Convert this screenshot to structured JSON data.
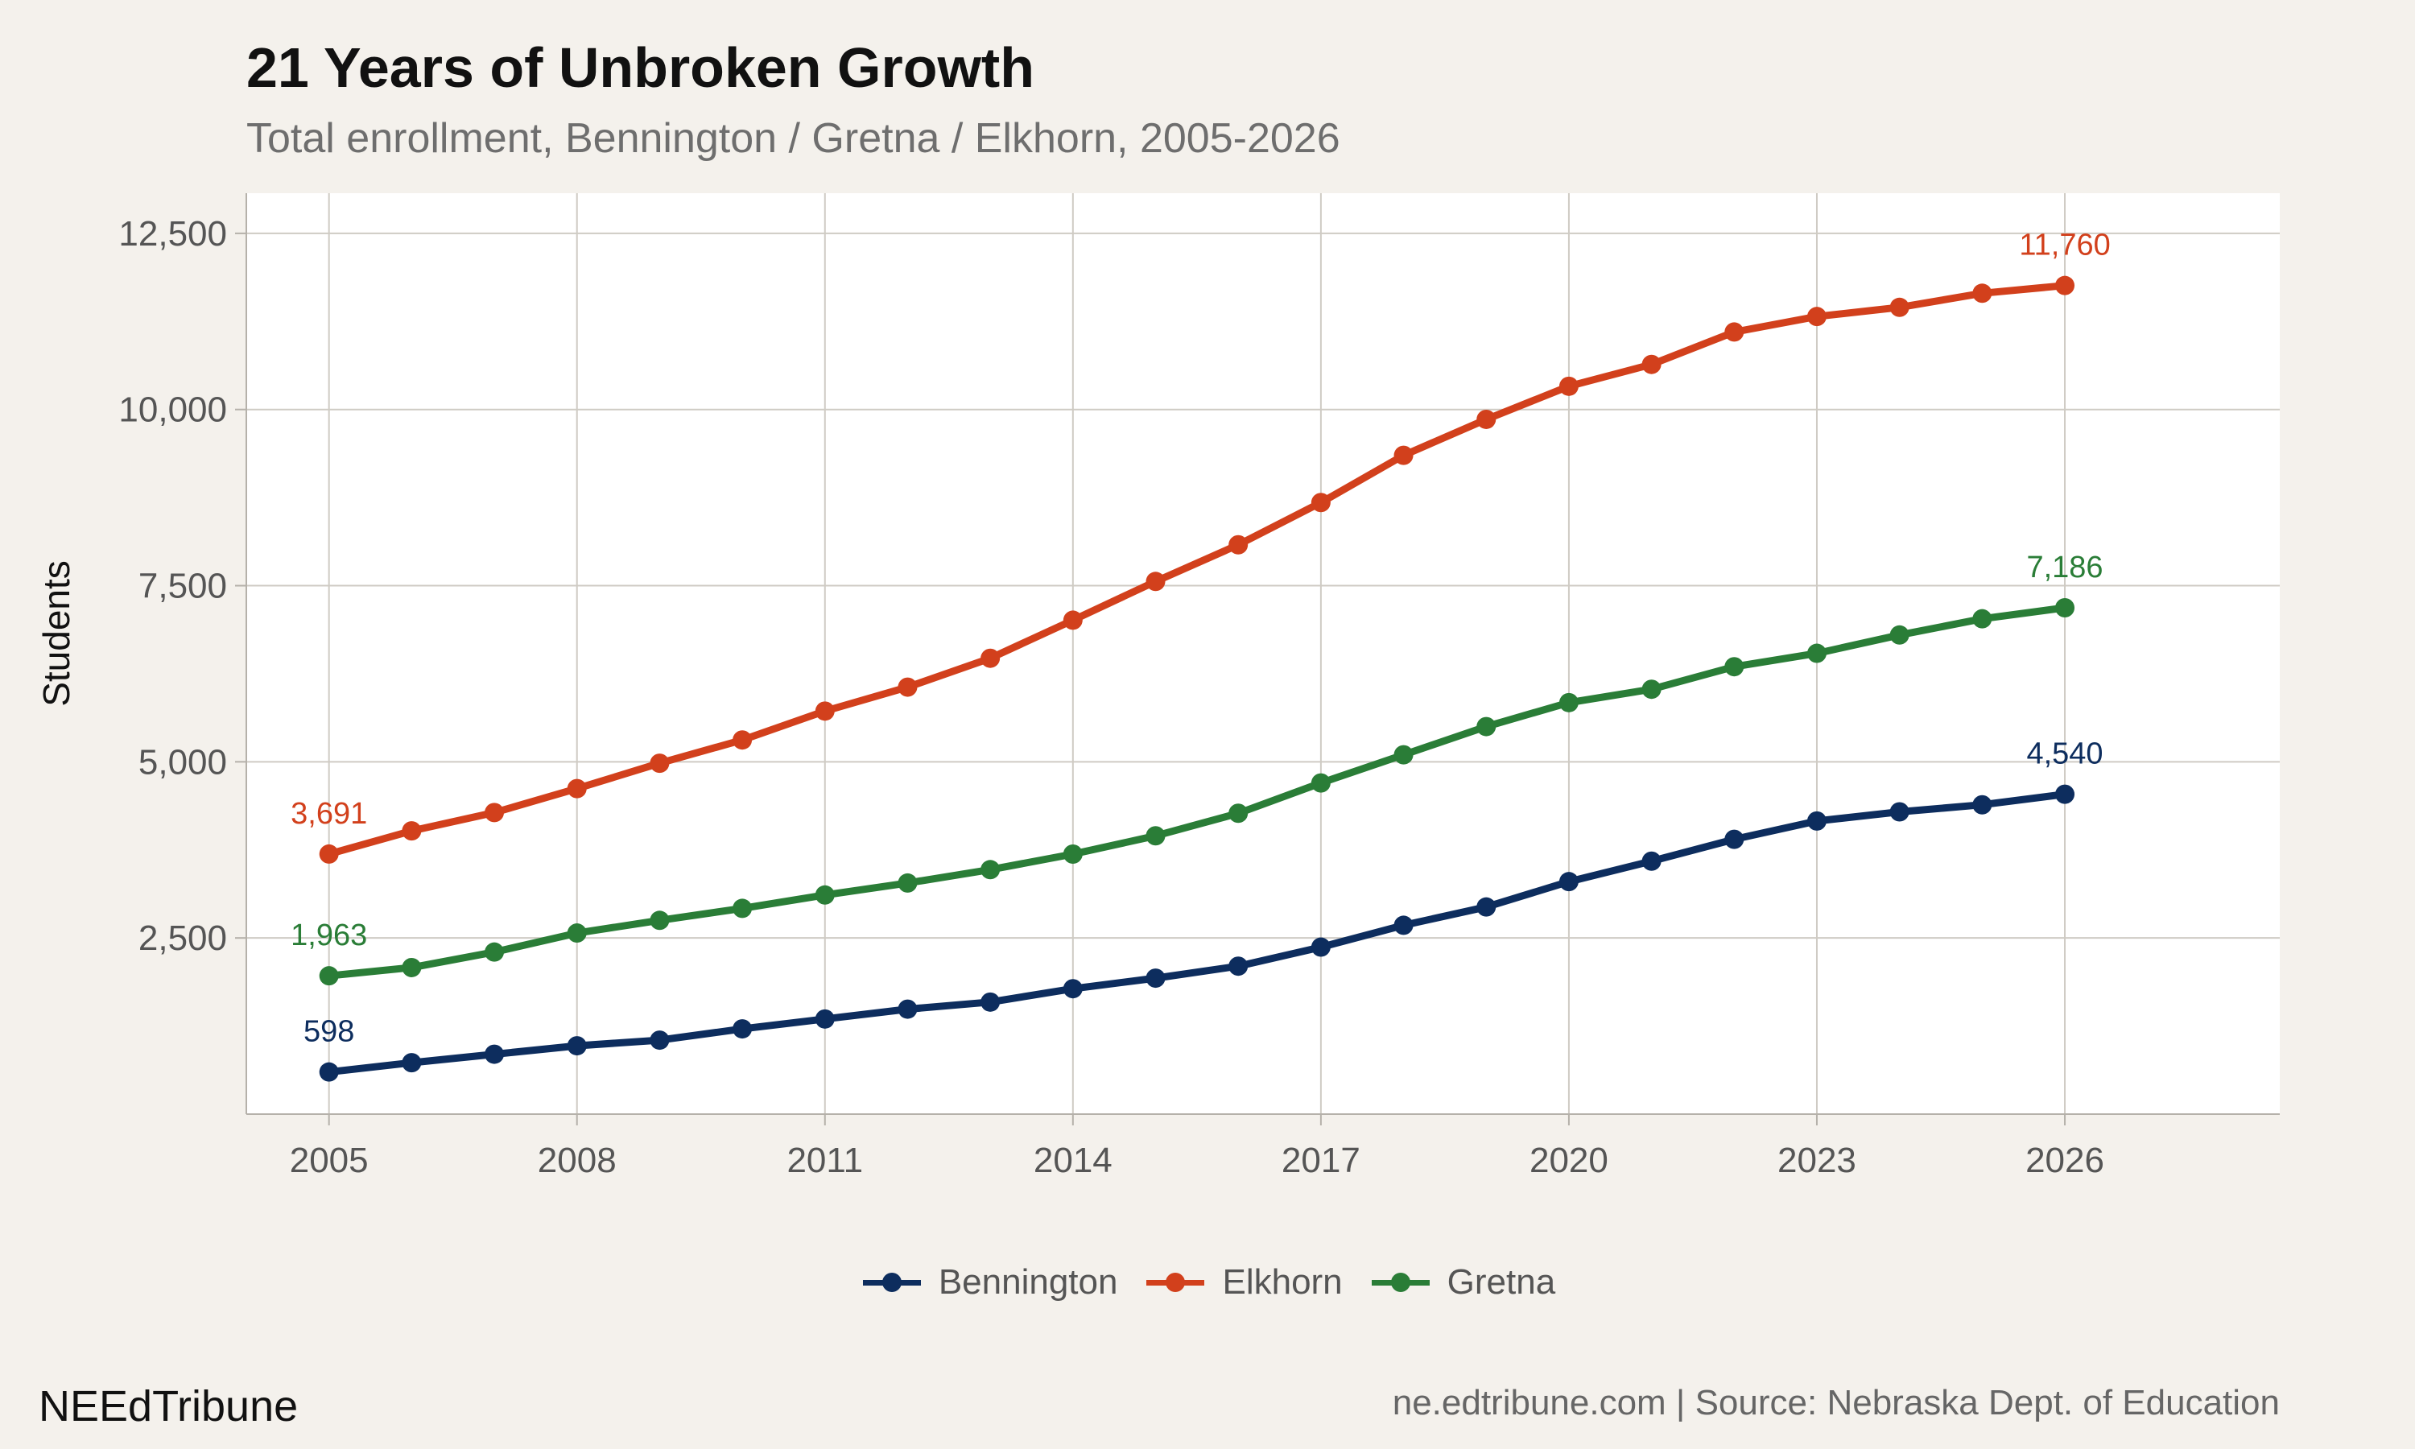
{
  "chart_data": {
    "type": "line",
    "title": "21 Years of Unbroken Growth",
    "subtitle": "Total enrollment, Bennington / Gretna / Elkhorn, 2005-2026",
    "xlabel": "",
    "ylabel": "Students",
    "x": [
      2005,
      2006,
      2007,
      2008,
      2009,
      2010,
      2011,
      2012,
      2013,
      2014,
      2015,
      2016,
      2017,
      2018,
      2019,
      2020,
      2021,
      2022,
      2023,
      2024,
      2025,
      2026
    ],
    "xticks": [
      2005,
      2008,
      2011,
      2014,
      2017,
      2020,
      2023,
      2026
    ],
    "xtick_labels": [
      "2005",
      "2008",
      "2011",
      "2014",
      "2017",
      "2020",
      "2023",
      "2026"
    ],
    "yticks": [
      2500,
      5000,
      7500,
      10000,
      12500
    ],
    "ytick_labels": [
      "2,500",
      "5,000",
      "7,500",
      "10,000",
      "12,500"
    ],
    "xlim": [
      2004,
      2028.6
    ],
    "ylim": [
      0,
      13070
    ],
    "grid": true,
    "legend_position": "bottom",
    "series": [
      {
        "name": "Bennington",
        "color": "#0d2d5e",
        "values": [
          598,
          730,
          850,
          970,
          1050,
          1210,
          1350,
          1490,
          1590,
          1780,
          1930,
          2100,
          2370,
          2680,
          2940,
          3300,
          3590,
          3900,
          4160,
          4290,
          4390,
          4540
        ],
        "start_label": "598",
        "end_label": "4,540"
      },
      {
        "name": "Elkhorn",
        "color": "#d2401c",
        "values": [
          3691,
          4020,
          4280,
          4620,
          4980,
          5310,
          5720,
          6060,
          6470,
          7010,
          7560,
          8080,
          8680,
          9350,
          9860,
          10330,
          10640,
          11100,
          11320,
          11450,
          11650,
          11760
        ],
        "start_label": "3,691",
        "end_label": "11,760"
      },
      {
        "name": "Gretna",
        "color": "#2a7d37",
        "values": [
          1963,
          2080,
          2300,
          2570,
          2750,
          2920,
          3110,
          3280,
          3470,
          3690,
          3950,
          4270,
          4700,
          5100,
          5500,
          5840,
          6030,
          6350,
          6540,
          6800,
          7030,
          7186
        ],
        "start_label": "1,963",
        "end_label": "7,186"
      }
    ]
  },
  "legend": {
    "items": [
      {
        "label": "Bennington",
        "color": "#0d2d5e"
      },
      {
        "label": "Elkhorn",
        "color": "#d2401c"
      },
      {
        "label": "Gretna",
        "color": "#2a7d37"
      }
    ]
  },
  "footer": {
    "brand": "NEEdTribune",
    "source": "ne.edtribune.com | Source: Nebraska Dept. of Education"
  }
}
